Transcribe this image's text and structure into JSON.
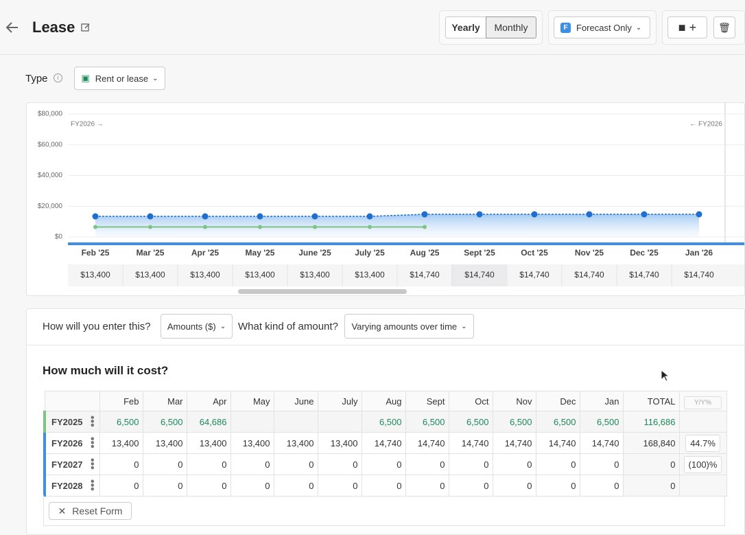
{
  "header": {
    "title": "Lease",
    "toggle": [
      "Yearly",
      "Monthly"
    ],
    "scenario_icon": "F",
    "scenario": "Forecast Only"
  },
  "type_field": {
    "label": "Type",
    "value": "Rent or lease"
  },
  "chart_data": {
    "type": "line",
    "categories": [
      "Feb '25",
      "Mar '25",
      "Apr '25",
      "May '25",
      "June '25",
      "July '25",
      "Aug '25",
      "Sept '25",
      "Oct '25",
      "Nov '25",
      "Dec '25",
      "Jan '26"
    ],
    "series": [
      {
        "color": "#1f6fd1",
        "values": [
          13400,
          13400,
          13400,
          13400,
          13400,
          13400,
          14740,
          14740,
          14740,
          14740,
          14740,
          14740
        ],
        "value_labels": [
          "$13,400",
          "$13,400",
          "$13,400",
          "$13,400",
          "$13,400",
          "$13,400",
          "$14,740",
          "$14,740",
          "$14,740",
          "$14,740",
          "$14,740",
          "$14,740"
        ]
      },
      {
        "color": "#7dc383",
        "values": [
          6500,
          6500,
          6500,
          6500,
          6500,
          6500,
          6500,
          null,
          null,
          null,
          null,
          null
        ]
      }
    ],
    "ylim": [
      0,
      80000
    ],
    "yticks": [
      {
        "value": 0,
        "label": "$0"
      },
      {
        "value": 20000,
        "label": "$20,000"
      },
      {
        "value": 40000,
        "label": "$40,000"
      },
      {
        "value": 60000,
        "label": "$60,000"
      },
      {
        "value": 80000,
        "label": "$80,000"
      }
    ],
    "grid": true,
    "annotations": [
      "FY2026 →",
      "← FY2026"
    ]
  },
  "entry": {
    "q1": "How will you enter this?",
    "a1": "Amounts ($)",
    "q2": "What kind of amount?",
    "a2": "Varying amounts over time"
  },
  "cost": {
    "title": "How much will it cost?",
    "columns": [
      "Feb",
      "Mar",
      "Apr",
      "May",
      "June",
      "July",
      "Aug",
      "Sept",
      "Oct",
      "Nov",
      "Dec",
      "Jan",
      "TOTAL",
      "Y/Y%"
    ],
    "rows": [
      {
        "label": "FY2025",
        "cells": [
          "6,500",
          "6,500",
          "64,686",
          null,
          null,
          null,
          "6,500",
          "6,500",
          "6,500",
          "6,500",
          "6,500",
          "6,500",
          "116,686",
          null
        ]
      },
      {
        "label": "FY2026",
        "cells": [
          "13,400",
          "13,400",
          "13,400",
          "13,400",
          "13,400",
          "13,400",
          "14,740",
          "14,740",
          "14,740",
          "14,740",
          "14,740",
          "14,740",
          "168,840",
          "44.7%"
        ]
      },
      {
        "label": "FY2027",
        "cells": [
          "0",
          "0",
          "0",
          "0",
          "0",
          "0",
          "0",
          "0",
          "0",
          "0",
          "0",
          "0",
          "0",
          "(100)%"
        ]
      },
      {
        "label": "FY2028",
        "cells": [
          "0",
          "0",
          "0",
          "0",
          "0",
          "0",
          "0",
          "0",
          "0",
          "0",
          "0",
          "0",
          "0",
          null
        ]
      }
    ],
    "reset": "Reset Form"
  }
}
